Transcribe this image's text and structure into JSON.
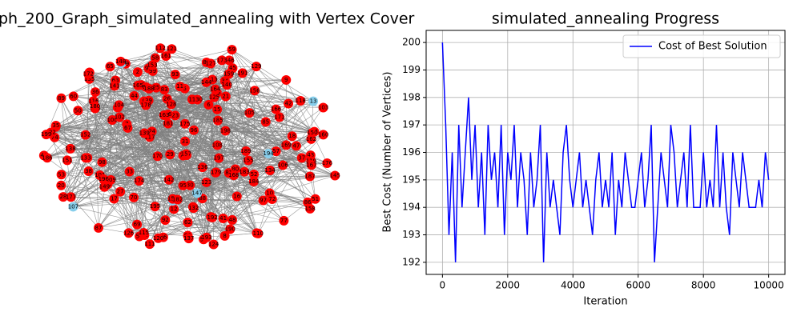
{
  "chart_data": [
    {
      "type": "network",
      "title": "ph_200_Graph_simulated_annealing with Vertex Cover",
      "nodes": [
        0,
        1,
        2,
        3,
        4,
        5,
        6,
        7,
        8,
        9,
        10,
        11,
        12,
        13,
        14,
        15,
        16,
        17,
        18,
        19,
        20,
        21,
        22,
        23,
        24,
        25,
        26,
        27,
        28,
        29,
        30,
        31,
        32,
        33,
        34,
        35,
        36,
        37,
        38,
        39,
        40,
        41,
        42,
        43,
        44,
        45,
        46,
        47,
        48,
        49,
        50,
        51,
        52,
        53,
        54,
        55,
        56,
        57,
        58,
        59,
        60,
        61,
        62,
        63,
        64,
        65,
        66,
        67,
        68,
        69,
        70,
        71,
        72,
        73,
        74,
        75,
        76,
        77,
        78,
        79,
        80,
        81,
        82,
        83,
        84,
        85,
        86,
        87,
        88,
        89,
        90,
        91,
        92,
        93,
        94,
        95,
        96,
        97,
        98,
        99,
        100,
        101,
        102,
        103,
        104,
        105,
        106,
        107,
        108,
        109,
        110,
        111,
        112,
        113,
        114,
        115,
        116,
        117,
        118,
        119,
        120,
        121,
        122,
        123,
        124,
        125,
        126,
        127,
        128,
        129,
        130,
        131,
        132,
        133,
        134,
        135,
        136,
        137,
        138,
        139,
        140,
        141,
        142,
        143,
        144,
        145,
        146,
        147,
        148,
        149,
        150,
        151,
        152,
        153,
        154,
        155,
        156,
        157,
        158,
        159,
        160,
        161,
        162,
        163,
        164,
        165,
        166,
        167,
        168,
        169,
        170,
        171,
        172,
        173,
        174,
        175,
        176,
        177,
        178,
        179,
        180,
        181,
        182,
        183,
        184,
        185,
        186,
        187,
        188,
        189,
        190,
        191,
        192,
        193,
        194,
        195,
        196,
        197,
        198,
        199
      ],
      "not_in_cover": [
        4,
        13,
        32,
        107,
        114,
        147,
        194
      ],
      "cover_color": "#ff0000",
      "other_color": "#87ceeb",
      "edge_color": "#808080"
    },
    {
      "type": "line",
      "title": "simulated_annealing Progress",
      "x_label": "Iteration",
      "y_label": "Best Cost (Number of Vertices)",
      "x": [
        0,
        100,
        200,
        300,
        400,
        500,
        600,
        700,
        800,
        900,
        1000,
        1100,
        1200,
        1300,
        1400,
        1500,
        1600,
        1700,
        1800,
        1900,
        2000,
        2100,
        2200,
        2300,
        2400,
        2500,
        2600,
        2700,
        2800,
        2900,
        3000,
        3100,
        3200,
        3300,
        3400,
        3500,
        3600,
        3700,
        3800,
        3900,
        4000,
        4100,
        4200,
        4300,
        4400,
        4500,
        4600,
        4700,
        4800,
        4900,
        5000,
        5100,
        5200,
        5300,
        5400,
        5500,
        5600,
        5700,
        5800,
        5900,
        6000,
        6100,
        6200,
        6300,
        6400,
        6500,
        6600,
        6700,
        6800,
        6900,
        7000,
        7100,
        7200,
        7300,
        7400,
        7500,
        7600,
        7700,
        7800,
        7900,
        8000,
        8100,
        8200,
        8300,
        8400,
        8500,
        8600,
        8700,
        8800,
        8900,
        9000,
        9100,
        9200,
        9300,
        9400,
        9500,
        9600,
        9700,
        9800,
        9900,
        10000
      ],
      "series": [
        {
          "name": "Cost of Best Solution",
          "color": "#0000ff",
          "values": [
            200,
            197,
            193,
            196,
            192,
            197,
            194,
            196,
            198,
            195,
            197,
            194,
            196,
            193,
            197,
            195,
            196,
            194,
            197,
            193,
            196,
            195,
            197,
            194,
            196,
            195,
            193,
            196,
            194,
            195,
            197,
            192,
            196,
            194,
            195,
            194,
            193,
            196,
            197,
            195,
            194,
            195,
            196,
            194,
            195,
            194,
            193,
            195,
            196,
            194,
            195,
            194,
            196,
            193,
            195,
            194,
            196,
            195,
            194,
            194,
            195,
            196,
            194,
            195,
            197,
            192,
            194,
            196,
            195,
            194,
            197,
            196,
            194,
            195,
            196,
            194,
            197,
            194,
            194,
            194,
            196,
            194,
            195,
            194,
            197,
            194,
            196,
            194,
            193,
            196,
            195,
            194,
            196,
            195,
            194,
            194,
            194,
            195,
            194,
            196,
            195
          ]
        }
      ],
      "xlim": [
        -500,
        10500
      ],
      "ylim": [
        191.56,
        200.44
      ],
      "xticks": [
        0,
        2000,
        4000,
        6000,
        8000,
        10000
      ],
      "yticks": [
        192,
        193,
        194,
        195,
        196,
        197,
        198,
        199,
        200
      ],
      "grid": true,
      "legend": "upper right"
    }
  ]
}
